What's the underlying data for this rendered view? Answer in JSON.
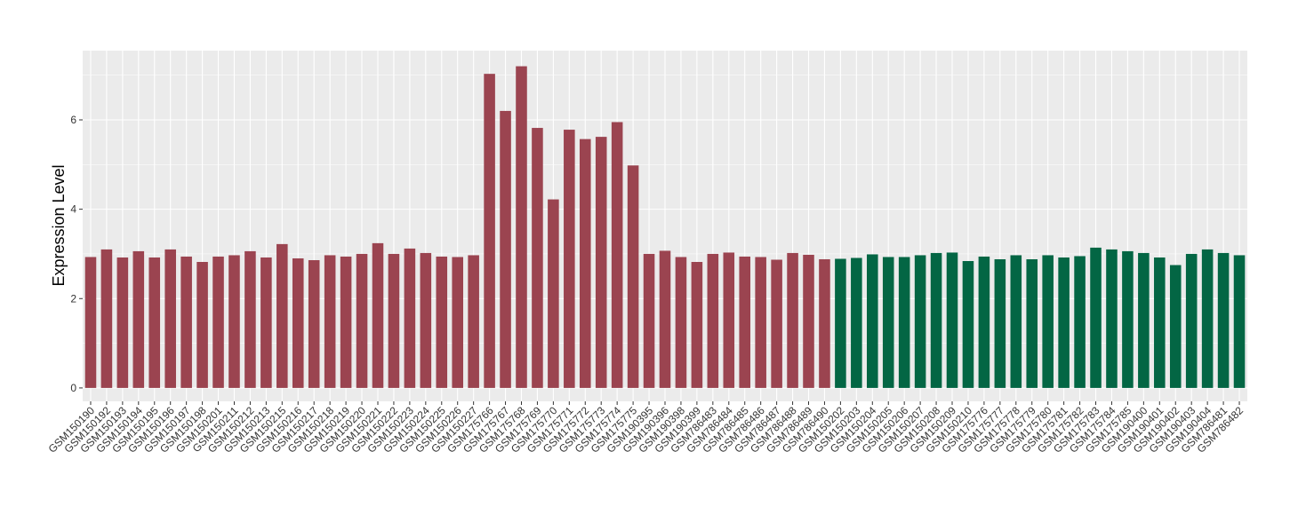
{
  "chart_data": {
    "type": "bar",
    "ylabel": "Expression Level",
    "ylim": [
      -0.3,
      7.55
    ],
    "yticks": [
      0,
      2,
      4,
      6
    ],
    "grid": true,
    "background": "#EBEBEB",
    "colors": {
      "group1": "#9B4450",
      "group2": "#036644"
    },
    "categories": [
      "GSM150190",
      "GSM150192",
      "GSM150193",
      "GSM150194",
      "GSM150195",
      "GSM150196",
      "GSM150197",
      "GSM150198",
      "GSM150201",
      "GSM150211",
      "GSM150212",
      "GSM150213",
      "GSM150215",
      "GSM150216",
      "GSM150217",
      "GSM150218",
      "GSM150219",
      "GSM150220",
      "GSM150221",
      "GSM150222",
      "GSM150223",
      "GSM150224",
      "GSM150225",
      "GSM150226",
      "GSM150227",
      "GSM175766",
      "GSM175767",
      "GSM175768",
      "GSM175769",
      "GSM175770",
      "GSM175771",
      "GSM175772",
      "GSM175773",
      "GSM175774",
      "GSM175775",
      "GSM190395",
      "GSM190396",
      "GSM190398",
      "GSM190399",
      "GSM786483",
      "GSM786484",
      "GSM786485",
      "GSM786486",
      "GSM786487",
      "GSM786488",
      "GSM786489",
      "GSM786490",
      "GSM150202",
      "GSM150203",
      "GSM150204",
      "GSM150205",
      "GSM150206",
      "GSM150207",
      "GSM150208",
      "GSM150209",
      "GSM150210",
      "GSM175776",
      "GSM175777",
      "GSM175778",
      "GSM175779",
      "GSM175780",
      "GSM175781",
      "GSM175782",
      "GSM175783",
      "GSM175784",
      "GSM175785",
      "GSM190400",
      "GSM190401",
      "GSM190402",
      "GSM190403",
      "GSM190404",
      "GSM786481",
      "GSM786482"
    ],
    "values": [
      2.93,
      3.1,
      2.92,
      3.06,
      2.92,
      3.1,
      2.94,
      2.82,
      2.94,
      2.97,
      3.06,
      2.92,
      3.22,
      2.9,
      2.86,
      2.97,
      2.94,
      3.0,
      3.24,
      3.0,
      3.12,
      3.02,
      2.94,
      2.93,
      2.97,
      7.03,
      6.2,
      7.2,
      5.82,
      4.22,
      5.78,
      5.57,
      5.62,
      5.95,
      4.98,
      3.0,
      3.07,
      2.93,
      2.82,
      3.0,
      3.03,
      2.94,
      2.93,
      2.87,
      3.02,
      2.98,
      2.88,
      2.89,
      2.91,
      2.99,
      2.93,
      2.93,
      2.97,
      3.02,
      3.03,
      2.84,
      2.94,
      2.88,
      2.97,
      2.88,
      2.97,
      2.92,
      2.95,
      3.14,
      3.1,
      3.06,
      3.02,
      2.92,
      2.75,
      3.0,
      3.1,
      3.02,
      2.97
    ],
    "groups": [
      1,
      1,
      1,
      1,
      1,
      1,
      1,
      1,
      1,
      1,
      1,
      1,
      1,
      1,
      1,
      1,
      1,
      1,
      1,
      1,
      1,
      1,
      1,
      1,
      1,
      1,
      1,
      1,
      1,
      1,
      1,
      1,
      1,
      1,
      1,
      1,
      1,
      1,
      1,
      1,
      1,
      1,
      1,
      1,
      1,
      1,
      1,
      2,
      2,
      2,
      2,
      2,
      2,
      2,
      2,
      2,
      2,
      2,
      2,
      2,
      2,
      2,
      2,
      2,
      2,
      2,
      2,
      2,
      2,
      2,
      2,
      2,
      2
    ]
  }
}
